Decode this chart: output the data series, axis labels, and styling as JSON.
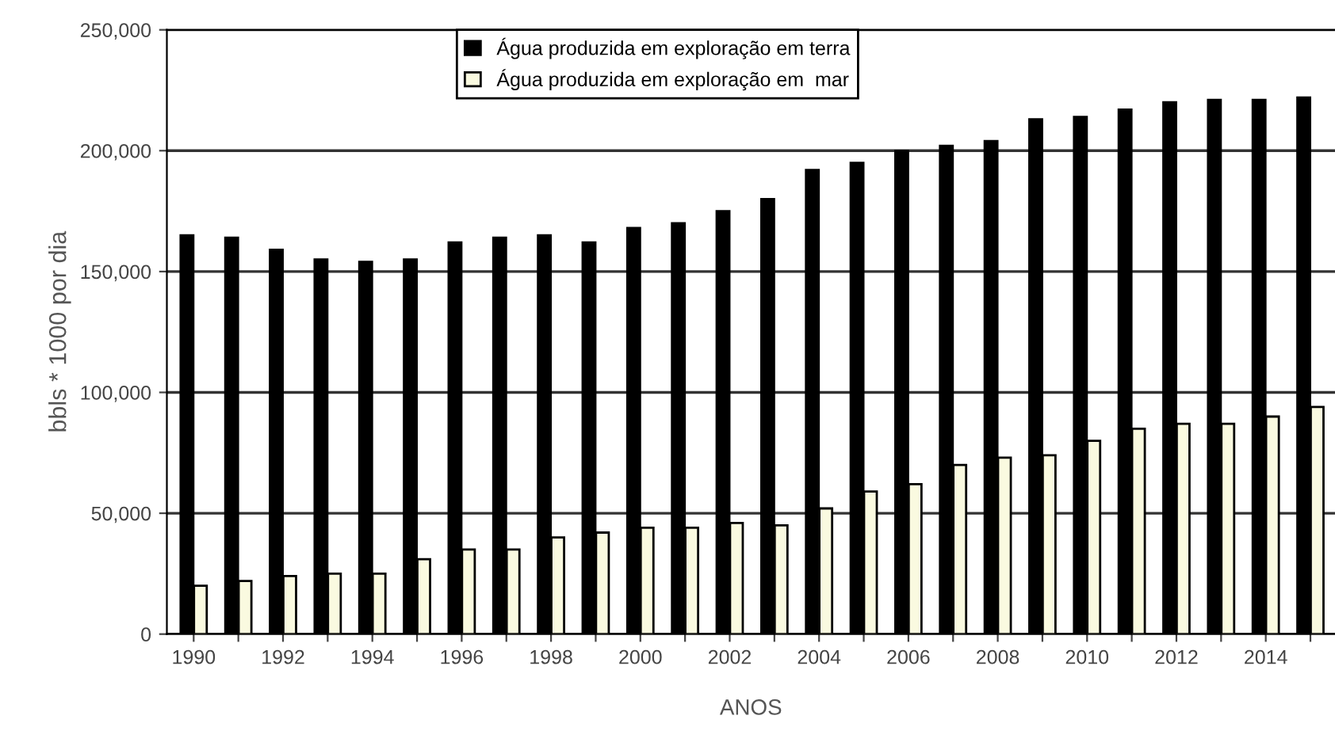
{
  "chart_data": {
    "type": "bar",
    "xlabel": "ANOS",
    "ylabel": "bbls * 1000 por dia",
    "categories": [
      "1990",
      null,
      "1992",
      null,
      "1994",
      null,
      "1996",
      null,
      "1998",
      null,
      "2000",
      null,
      "2002",
      null,
      "2004",
      null,
      "2006",
      null,
      "2008",
      null,
      "2010",
      null,
      "2012",
      null,
      "2014",
      null
    ],
    "series": [
      {
        "name": "Água produzida em exploração em terra",
        "color": "#000000",
        "values": [
          165000,
          164000,
          159000,
          155000,
          154000,
          155000,
          162000,
          164000,
          165000,
          162000,
          168000,
          170000,
          175000,
          180000,
          192000,
          195000,
          200000,
          202000,
          204000,
          213000,
          214000,
          217000,
          220000,
          221000,
          221000,
          222000
        ]
      },
      {
        "name": "Água produzida em exploração em  mar",
        "color": "#fafae0",
        "values": [
          20000,
          22000,
          24000,
          25000,
          25000,
          31000,
          35000,
          35000,
          40000,
          42000,
          44000,
          44000,
          46000,
          45000,
          52000,
          59000,
          62000,
          70000,
          73000,
          74000,
          80000,
          85000,
          87000,
          87000,
          90000,
          94000
        ]
      }
    ],
    "ylim": [
      0,
      250000
    ],
    "yticks": [
      {
        "value": 0,
        "label": "0"
      },
      {
        "value": 50000,
        "label": "50,000"
      },
      {
        "value": 100000,
        "label": "100,000"
      },
      {
        "value": 150000,
        "label": "150,000"
      },
      {
        "value": 200000,
        "label": "200,000"
      },
      {
        "value": 250000,
        "label": "250,000"
      }
    ],
    "grid": "y",
    "legend": "top"
  }
}
